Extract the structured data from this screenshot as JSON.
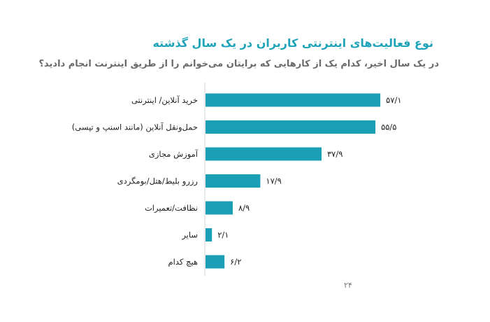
{
  "chart_data": {
    "type": "bar",
    "orientation": "horizontal",
    "title": "نوع فعالیت‌های اینترنتی کاربران در یک سال گذشته",
    "subtitle": "در یک سال اخیر، کدام یک از کارهایی که برایتان می‌خوانم را از طریق اینترنت انجام دادید؟",
    "categories": [
      "خرید آنلاین/ اینترنتی",
      "حمل‌ونقل آنلاین (مانند اسنپ و تپسی)",
      "آموزش مجازی",
      "رزرو بلیط/هتل/بومگردی",
      "نظافت/تعمیرات",
      "سایر",
      "هیچ کدام"
    ],
    "values": [
      57.1,
      55.5,
      37.9,
      17.9,
      8.9,
      2.1,
      6.2
    ],
    "value_labels": [
      "۵۷/۱",
      "۵۵/۵",
      "۳۷/۹",
      "۱۷/۹",
      "۸/۹",
      "۲/۱",
      "۶/۲"
    ],
    "xlim": [
      0,
      66
    ],
    "bar_color": "#1a9fb6",
    "grid": false
  },
  "title_color": "#1ea3b8",
  "page_number": "۲۴"
}
